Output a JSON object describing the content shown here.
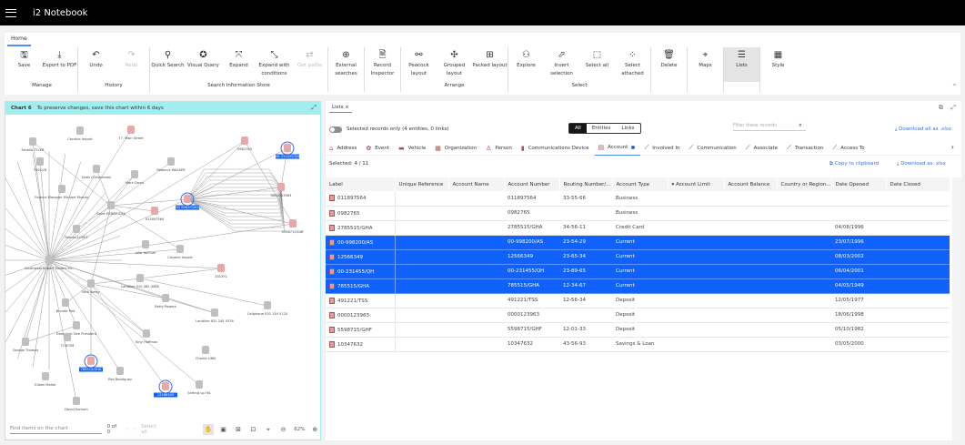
{
  "app": {
    "title": "i2 Notebook"
  },
  "ribbon": {
    "tab": "Home",
    "groups": [
      {
        "label": "Manage",
        "buttons": [
          {
            "icon": "save-icon",
            "glyph": "🖫",
            "label": "Save"
          },
          {
            "icon": "export-pdf-icon",
            "glyph": "⤓",
            "label": "Export to PDF"
          }
        ]
      },
      {
        "label": "History",
        "buttons": [
          {
            "icon": "undo-icon",
            "glyph": "↶",
            "label": "Undo"
          },
          {
            "icon": "redo-icon",
            "glyph": "↷",
            "label": "Redo",
            "disabled": true
          }
        ]
      },
      {
        "label": "Search Information Store",
        "buttons": [
          {
            "icon": "search-icon",
            "glyph": "⚲",
            "label": "Quick Search"
          },
          {
            "icon": "visual-query-icon",
            "glyph": "✪",
            "label": "Visual Query"
          },
          {
            "icon": "expand-icon",
            "glyph": "⤧",
            "label": "Expand"
          },
          {
            "icon": "expand-conditions-icon",
            "glyph": "⤡",
            "label": "Expand with conditions"
          },
          {
            "icon": "get-paths-icon",
            "glyph": "⇄",
            "label": "Get paths",
            "disabled": true
          }
        ]
      },
      {
        "label": "",
        "buttons": [
          {
            "icon": "external-search-icon",
            "glyph": "⊕",
            "label": "External searches"
          }
        ]
      },
      {
        "label": "",
        "buttons": [
          {
            "icon": "record-inspector-icon",
            "glyph": "🗎",
            "label": "Record Inspector"
          }
        ]
      },
      {
        "label": "Arrange",
        "buttons": [
          {
            "icon": "peacock-layout-icon",
            "glyph": "⚯",
            "label": "Peacock layout"
          },
          {
            "icon": "grouped-layout-icon",
            "glyph": "✣",
            "label": "Grouped layout"
          },
          {
            "icon": "packed-layout-icon",
            "glyph": "⊞",
            "label": "Packed layout"
          }
        ]
      },
      {
        "label": "Select",
        "buttons": [
          {
            "icon": "explore-icon",
            "glyph": "⚇",
            "label": "Explore"
          },
          {
            "icon": "invert-selection-icon",
            "glyph": "⬀",
            "label": "Invert selection"
          },
          {
            "icon": "select-all-icon",
            "glyph": "⬚",
            "label": "Select all"
          },
          {
            "icon": "select-attached-icon",
            "glyph": "⁘",
            "label": "Select attached"
          }
        ]
      },
      {
        "label": "",
        "buttons": [
          {
            "icon": "delete-icon",
            "glyph": "🗑",
            "label": "Delete"
          }
        ]
      },
      {
        "label": "",
        "buttons": [
          {
            "icon": "maps-icon",
            "glyph": "⌖",
            "label": "Maps"
          }
        ]
      },
      {
        "label": "",
        "buttons": [
          {
            "icon": "lists-icon",
            "glyph": "☰",
            "label": "Lists",
            "active": true
          }
        ]
      },
      {
        "label": "",
        "buttons": [
          {
            "icon": "style-icon",
            "glyph": "▦",
            "label": "Style"
          }
        ]
      }
    ]
  },
  "chart": {
    "name": "Chart 6",
    "notice": "To preserve changes, save this chart within 6 days",
    "find_placeholder": "Find items on the chart",
    "count": "0 of 0",
    "select_all": "Select all",
    "zoom": "62%",
    "nodes": [
      "Fenella TYLER",
      "Cocaine Import",
      "77, Main Street",
      "Rebecca WALKER",
      "T92CVB",
      "Scott Christiansen",
      "Mark Davis",
      "Finance Manager Michael Murphy",
      "Gene HENDRICKS",
      "011897564",
      "00-998200/AS",
      "00-231455/QH",
      "0982765",
      "0000123963",
      "5598715/GHF",
      "Ramon LOPEZ",
      "Southwest Import Traders Inc.",
      "Julia Yochum",
      "Cocaine Import",
      "Nick Keesy",
      "331XYL",
      "Landline 010 082 4086",
      "Betty Powers",
      "Cellphone 020 134 5120",
      "Landline 631 245 4376",
      "Brenda Pelt",
      "Executive Vice President",
      "T13FOM",
      "Tony Hoffman",
      "Charlie LINN",
      "George Thomas",
      "785515/GHA",
      "Rex Rodriguez",
      "12566349",
      "Setting up HIL",
      "Eileen Maher",
      "David Yochum"
    ],
    "selected_nodes": [
      "00-998200/AS",
      "00-231455/QH",
      "785515/GHA",
      "12566349"
    ]
  },
  "lists": {
    "tab": "Lists",
    "toggle_label": "Selected records only (4 entities, 0 links)",
    "segments": [
      "All",
      "Entities",
      "Links"
    ],
    "filter_placeholder": "Filter these records",
    "download_all": "Download all as .xlsx",
    "entity_tabs": [
      {
        "label": "Address",
        "icon": "address-icon"
      },
      {
        "label": "Event",
        "icon": "event-icon"
      },
      {
        "label": "Vehicle",
        "icon": "vehicle-icon"
      },
      {
        "label": "Organization",
        "icon": "organization-icon"
      },
      {
        "label": "Person",
        "icon": "person-icon"
      },
      {
        "label": "Communications Device",
        "icon": "phone-icon"
      },
      {
        "label": "Account",
        "icon": "account-icon",
        "active": true
      },
      {
        "label": "Involved In",
        "icon": "link-icon"
      },
      {
        "label": "Communication",
        "icon": "link-icon"
      },
      {
        "label": "Associate",
        "icon": "link-icon"
      },
      {
        "label": "Transaction",
        "icon": "link-icon"
      },
      {
        "label": "Access To",
        "icon": "link-icon"
      }
    ],
    "selected_count": "Selected: 4 / 11",
    "copy": "Copy to clipboard",
    "download": "Download as .xlsx",
    "columns": [
      "Label",
      "Unique Reference",
      "Account Name",
      "Account Number",
      "Routing Number/...",
      "Account Type",
      "Account Limit",
      "Account Balance",
      "Country or Region...",
      "Date Opened",
      "Date Closed"
    ],
    "sort_column": "Account Limit",
    "rows": [
      {
        "selected": false,
        "cells": [
          "011897564",
          "",
          "",
          "011897564",
          "33-55-66",
          "Business",
          "",
          "",
          "",
          "",
          ""
        ]
      },
      {
        "selected": false,
        "cells": [
          "0982765",
          "",
          "",
          "0982765",
          "",
          "Business",
          "",
          "",
          "",
          "",
          ""
        ]
      },
      {
        "selected": false,
        "cells": [
          "2785515/GHA",
          "",
          "",
          "2785515/GHA",
          "34-56-11",
          "Credit Card",
          "",
          "",
          "",
          "04/08/1996",
          ""
        ]
      },
      {
        "selected": true,
        "cells": [
          "00-998200/AS",
          "",
          "",
          "00-998200/AS",
          "23-54-29",
          "Current",
          "",
          "",
          "",
          "23/07/1996",
          ""
        ]
      },
      {
        "selected": true,
        "cells": [
          "12566349",
          "",
          "",
          "12566349",
          "23-65-34",
          "Current",
          "",
          "",
          "",
          "08/03/2002",
          ""
        ]
      },
      {
        "selected": true,
        "cells": [
          "00-231455/QH",
          "",
          "",
          "00-231455/QH",
          "23-89-65",
          "Current",
          "",
          "",
          "",
          "06/04/2001",
          ""
        ]
      },
      {
        "selected": true,
        "cells": [
          "785515/GHA",
          "",
          "",
          "785515/GHA",
          "12-34-67",
          "Current",
          "",
          "",
          "",
          "04/05/1949",
          ""
        ]
      },
      {
        "selected": false,
        "cells": [
          "491221/TSS",
          "",
          "",
          "491221/TSS",
          "12-56-34",
          "Deposit",
          "",
          "",
          "",
          "12/05/1977",
          ""
        ]
      },
      {
        "selected": false,
        "cells": [
          "0000123963",
          "",
          "",
          "0000123963",
          "",
          "Deposit",
          "",
          "",
          "",
          "18/06/1998",
          ""
        ]
      },
      {
        "selected": false,
        "cells": [
          "5598715/GHF",
          "",
          "",
          "5598715/GHF",
          "12-01-33",
          "Deposit",
          "",
          "",
          "",
          "05/10/1982",
          ""
        ]
      },
      {
        "selected": false,
        "cells": [
          "10347632",
          "",
          "",
          "10347632",
          "43-56-93",
          "Savings & Loan",
          "",
          "",
          "",
          "03/05/2000",
          ""
        ]
      }
    ]
  },
  "colors": {
    "accent": "#0f62fe",
    "chart_header": "#a2eeee",
    "topbar": "#000000"
  }
}
